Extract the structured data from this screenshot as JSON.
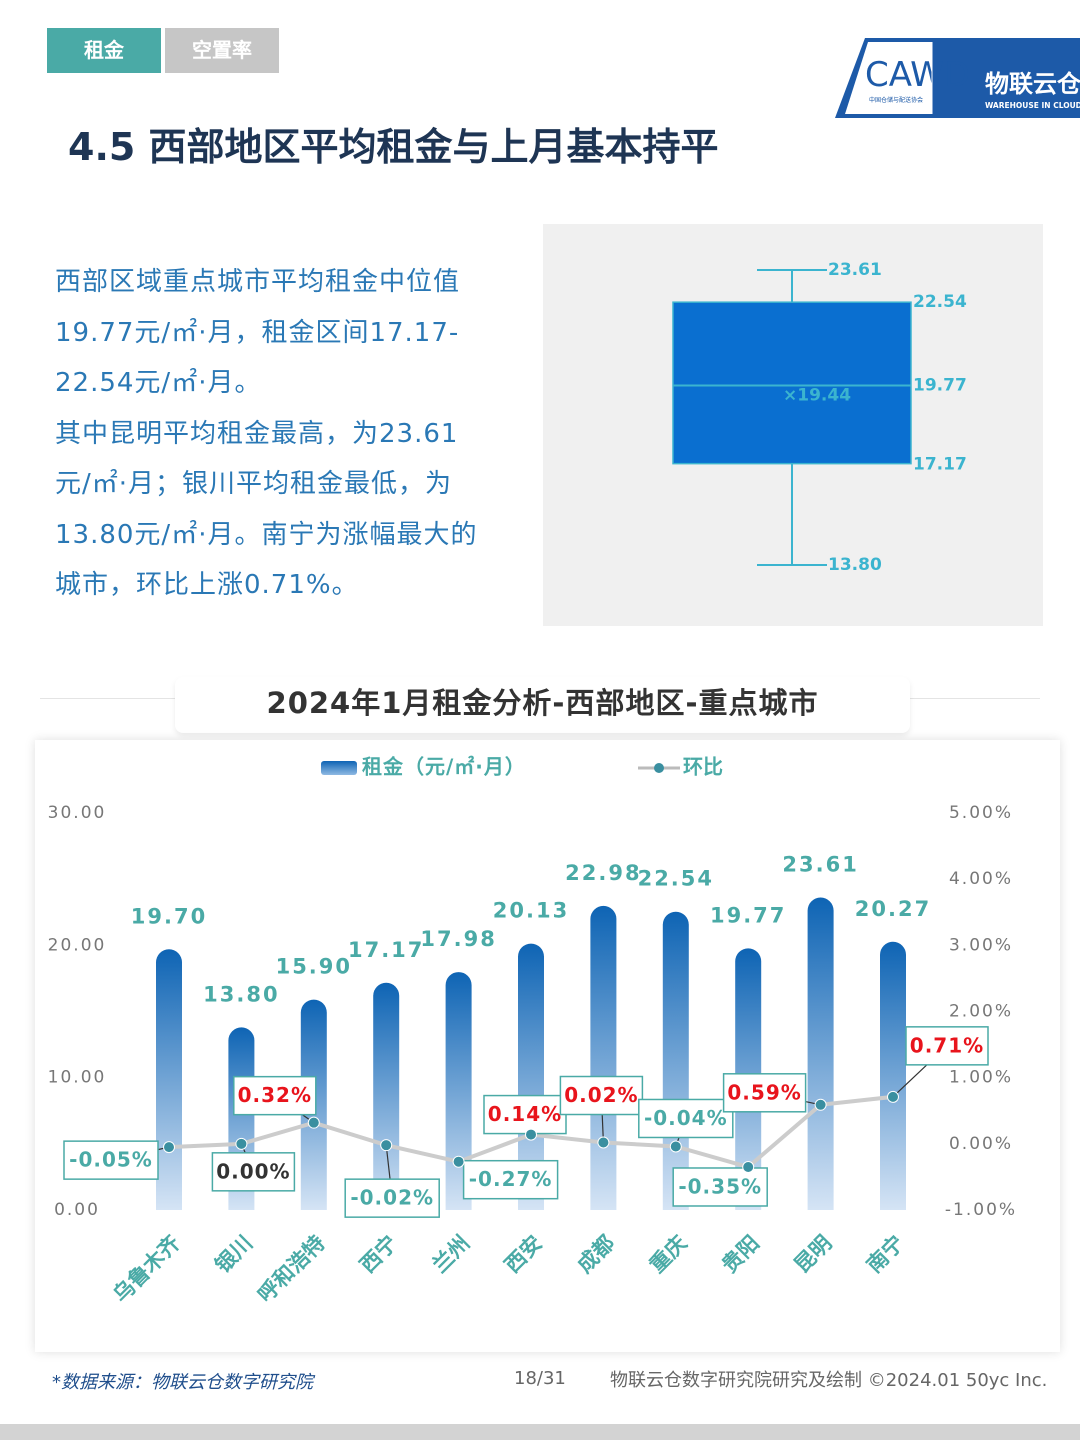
{
  "tabs": [
    {
      "label": "租金",
      "active": true
    },
    {
      "label": "空置率",
      "active": false
    }
  ],
  "logo": {
    "cawd": "CAWD",
    "cawd_sub": "中国仓储与配送协会",
    "wlyc": "物联云仓",
    "wlyc_sub": "WAREHOUSE IN CLOUD"
  },
  "title": "4.5 西部地区平均租金与上月基本持平",
  "description": [
    "西部区域重点城市平均租金中位值",
    "19.77元/㎡·月，租金区间17.17-",
    "22.54元/㎡·月。",
    "其中昆明平均租金最高，为23.61",
    "元/㎡·月；银川平均租金最低，为",
    "13.80元/㎡·月。南宁为涨幅最大的",
    "城市，环比上涨0.71%。"
  ],
  "boxplot": {
    "max": 23.61,
    "q3": 22.54,
    "median": 19.77,
    "q1": 17.17,
    "min": 13.8,
    "mean": 19.44,
    "labels": {
      "max": "23.61",
      "q3": "22.54",
      "median": "19.77",
      "q1": "17.17",
      "min": "13.80",
      "mean": "×19.44"
    }
  },
  "chart_data": {
    "type": "bar",
    "title": "2024年1月租金分析-西部地区-重点城市",
    "categories": [
      "乌鲁木齐",
      "银川",
      "呼和浩特",
      "西宁",
      "兰州",
      "西安",
      "成都",
      "重庆",
      "贵阳",
      "昆明",
      "南宁"
    ],
    "series": [
      {
        "name": "租金（元/㎡·月）",
        "type": "bar",
        "axis": "left",
        "values": [
          19.7,
          13.8,
          15.9,
          17.17,
          17.98,
          20.13,
          22.98,
          22.54,
          19.77,
          23.61,
          20.27
        ],
        "labels": [
          "19.70",
          "13.80",
          "15.90",
          "17.17",
          "17.98",
          "20.13",
          "22.98",
          "22.54",
          "19.77",
          "23.61",
          "20.27"
        ]
      },
      {
        "name": "环比",
        "type": "line",
        "axis": "right",
        "values": [
          -0.05,
          0.0,
          0.32,
          -0.02,
          -0.27,
          0.14,
          0.02,
          -0.04,
          -0.35,
          0.59,
          0.71
        ],
        "labels": [
          "-0.05%",
          "0.00%",
          "0.32%",
          "-0.02%",
          "-0.27%",
          "0.14%",
          "0.02%",
          "-0.04%",
          "-0.35%",
          "0.59%",
          "0.71%"
        ]
      }
    ],
    "y_left": {
      "min": 0,
      "max": 30,
      "ticks": [
        "0.00",
        "10.00",
        "20.00",
        "30.00"
      ]
    },
    "y_right": {
      "min": -1,
      "max": 5,
      "ticks": [
        "-1.00%",
        "0.00%",
        "1.00%",
        "2.00%",
        "3.00%",
        "4.00%",
        "5.00%"
      ]
    },
    "legend_position": "top",
    "grid": false,
    "colors": {
      "bar_top": "#0e64b4",
      "bar_bottom": "#d5e4f5",
      "line": "#cccccc",
      "marker": "#3a8fa0",
      "positive": "#e8141c",
      "negative": "#4aaaa6",
      "zero": "#333333",
      "value": "#4aaaa6"
    }
  },
  "footer": {
    "source": "*数据来源：物联云仓数字研究院",
    "page": "18/31",
    "credit": "物联云仓数字研究院研究及绘制    ©2024.01 50yc Inc."
  }
}
